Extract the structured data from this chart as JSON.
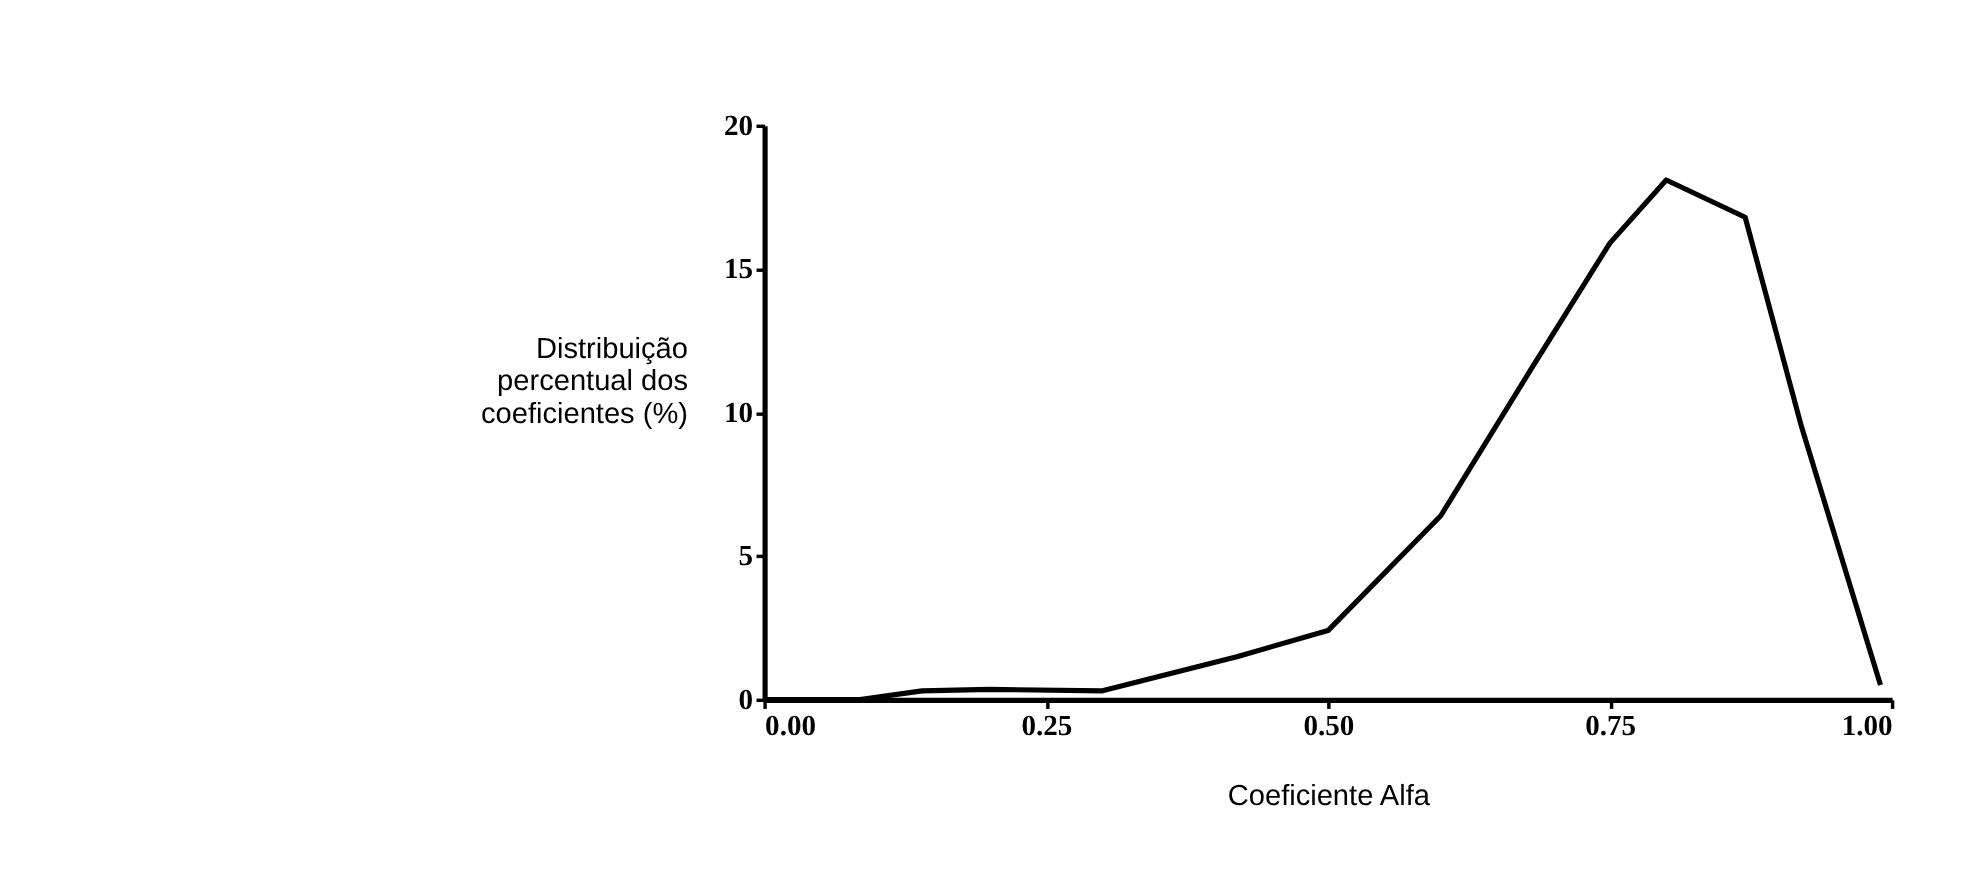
{
  "chart_data": {
    "type": "line",
    "xlabel": "Coeficiente Alfa",
    "ylabel": "Distribuição percentual dos coeficientes (%)",
    "x": [
      0.0,
      0.085,
      0.14,
      0.2,
      0.3,
      0.42,
      0.5,
      0.6,
      0.68,
      0.75,
      0.8,
      0.87,
      0.92,
      0.99
    ],
    "series": [
      {
        "color": "#000000",
        "values": [
          0,
          0,
          0.3,
          0.35,
          0.3,
          1.5,
          2.4,
          6.4,
          11.5,
          15.9,
          18.1,
          16.8,
          9.5,
          0.5
        ]
      }
    ],
    "xlim": [
      0,
      1
    ],
    "xticks": [
      {
        "value": 0,
        "label": "0.00"
      },
      {
        "value": 0.25,
        "label": "0.25"
      },
      {
        "value": 0.5,
        "label": "0.50"
      },
      {
        "value": 0.75,
        "label": "0.75"
      },
      {
        "value": 1,
        "label": "1.00"
      }
    ],
    "ylim": [
      0,
      20
    ],
    "yticks": [
      0,
      5,
      10,
      15,
      20
    ],
    "grid": false,
    "marker": "none",
    "line_style": "solid"
  }
}
